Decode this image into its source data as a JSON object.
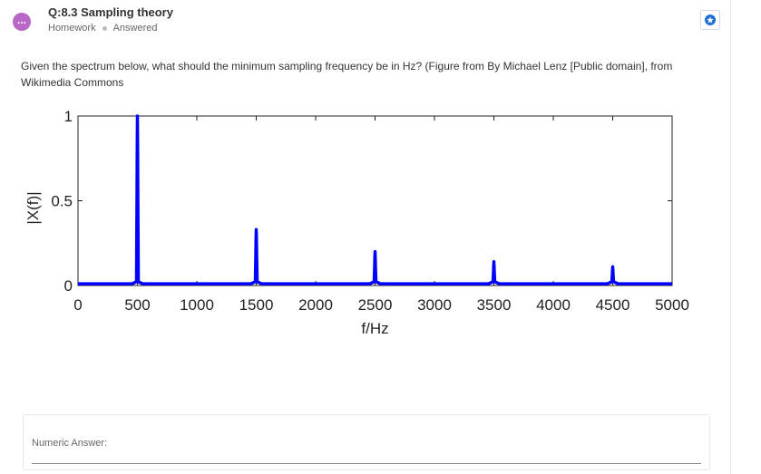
{
  "header": {
    "avatar_glyph": "...",
    "title": "Q:8.3 Sampling theory",
    "meta": [
      "Homework",
      "Answered"
    ],
    "star_icon": "star-icon"
  },
  "question": {
    "text": "Given the spectrum below, what should the minimum sampling frequency be in Hz? (Figure from By Michael Lenz [Public domain], from Wikimedia Commons"
  },
  "chart_data": {
    "type": "line",
    "xlabel": "f/Hz",
    "ylabel": "|X(f)|",
    "xlim": [
      0,
      5000
    ],
    "ylim": [
      0,
      1
    ],
    "x_ticks": [
      0,
      500,
      1000,
      1500,
      2000,
      2500,
      3000,
      3500,
      4000,
      4500,
      5000
    ],
    "y_ticks": [
      0,
      0.5,
      1
    ],
    "y_tick_labels": [
      "0",
      "0.5",
      "1"
    ],
    "grid": false,
    "series_color": "#0000ff",
    "baseline": 0.01,
    "peaks": [
      {
        "f": 500,
        "amp": 1.0
      },
      {
        "f": 1500,
        "amp": 0.33
      },
      {
        "f": 2500,
        "amp": 0.2
      },
      {
        "f": 3500,
        "amp": 0.14
      },
      {
        "f": 4500,
        "amp": 0.11
      }
    ]
  },
  "answer": {
    "label": "Numeric Answer:",
    "value": "",
    "placeholder": ""
  }
}
